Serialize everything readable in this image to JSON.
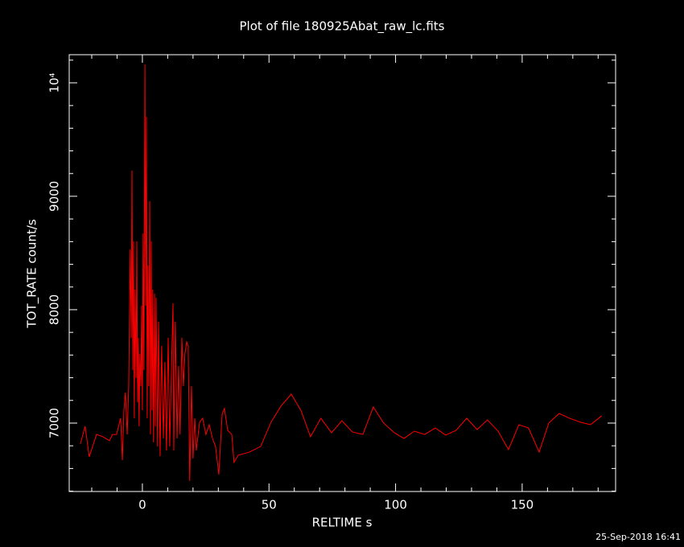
{
  "chart_data": {
    "type": "line",
    "title": "Plot of file 180925Abat_raw_lc.fits",
    "x_label": "RELTIME  s",
    "y_label": "TOT_RATE  count/s",
    "timestamp": "25-Sep-2018 16:41",
    "xlim": [
      -28.9,
      186.9
    ],
    "ylim": [
      6397,
      10248
    ],
    "xticks": [
      0,
      50,
      100,
      150
    ],
    "yticks": [
      7000,
      8000,
      9000,
      {
        "value": 10000,
        "label": "10⁴"
      }
    ],
    "x_minor_ticks": [
      -20,
      -10,
      10,
      20,
      30,
      40,
      60,
      70,
      80,
      90,
      110,
      120,
      130,
      140,
      160,
      170,
      180
    ],
    "y_minor_ticks": [
      6400,
      6600,
      6800,
      7200,
      7400,
      7600,
      7800,
      8200,
      8400,
      8600,
      8800,
      9200,
      9400,
      9600,
      9800,
      10200
    ],
    "series": [
      {
        "color": "#ff0000",
        "x": [
          -24.5,
          -22.6,
          -21,
          -18.1,
          -15.6,
          -13,
          -11.8,
          -10.2,
          -8.6,
          -7.9,
          -7.3,
          -6.7,
          -6,
          -5.4,
          -4.8,
          -4.4,
          -4.1,
          -3.8,
          -3.5,
          -3.2,
          -2.9,
          -2.5,
          -2.2,
          -1.9,
          -1.6,
          -1.3,
          -1,
          -0.6,
          -0.3,
          0,
          0.3,
          0.6,
          1,
          1.3,
          1.6,
          1.9,
          2.2,
          2.5,
          2.9,
          3.2,
          3.5,
          3.8,
          4.1,
          4.4,
          4.8,
          5.1,
          5.4,
          6,
          6.4,
          7,
          7.6,
          8.3,
          8.9,
          9.5,
          10.2,
          10.8,
          11.4,
          12.1,
          12.4,
          13,
          13.7,
          14.3,
          14.9,
          15.6,
          16.2,
          16.8,
          17.5,
          18.1,
          18.7,
          19.4,
          20,
          20.7,
          21.3,
          22.6,
          23.8,
          25.1,
          26.4,
          27.7,
          28.9,
          30.2,
          31.5,
          32.4,
          33.7,
          35.3,
          36.2,
          37.8,
          42.3,
          46.7,
          50.8,
          54.7,
          58.8,
          62.6,
          66.4,
          70.5,
          74.7,
          78.8,
          82.9,
          87.1,
          91.2,
          95.3,
          99.5,
          103.3,
          107.4,
          111.5,
          115.7,
          119.8,
          123.9,
          128.1,
          132.2,
          136.3,
          140.5,
          144.6,
          148.7,
          152.5,
          156.7,
          160.5,
          164.6,
          168.7,
          173.2,
          177,
          181.4
        ],
        "values": [
          6816,
          6972,
          6702,
          6900,
          6880,
          6845,
          6900,
          6900,
          7043,
          6674,
          7113,
          7270,
          6900,
          7326,
          8531,
          7750,
          9226,
          7468,
          8602,
          7043,
          8177,
          7397,
          8602,
          7184,
          7750,
          6972,
          7610,
          7326,
          8035,
          7113,
          8673,
          7468,
          10162,
          8035,
          9701,
          7043,
          8390,
          7326,
          8957,
          6900,
          8602,
          7113,
          8177,
          6830,
          8142,
          6972,
          8106,
          6794,
          7893,
          6709,
          7681,
          6865,
          7539,
          6759,
          7752,
          6794,
          7397,
          8056,
          6759,
          7893,
          6865,
          7503,
          6900,
          7752,
          7326,
          7610,
          7716,
          7681,
          6489,
          7326,
          6688,
          7043,
          6759,
          7007,
          7043,
          6900,
          6986,
          6865,
          6794,
          6546,
          7078,
          7128,
          6936,
          6900,
          6653,
          6716,
          6745,
          6794,
          7007,
          7149,
          7255,
          7113,
          6880,
          7043,
          6915,
          7021,
          6922,
          6900,
          7142,
          7000,
          6915,
          6865,
          6929,
          6900,
          6957,
          6894,
          6936,
          7043,
          6943,
          7028,
          6929,
          6766,
          6986,
          6957,
          6745,
          7000,
          7085,
          7043,
          7007,
          6986,
          7064
        ]
      }
    ]
  }
}
